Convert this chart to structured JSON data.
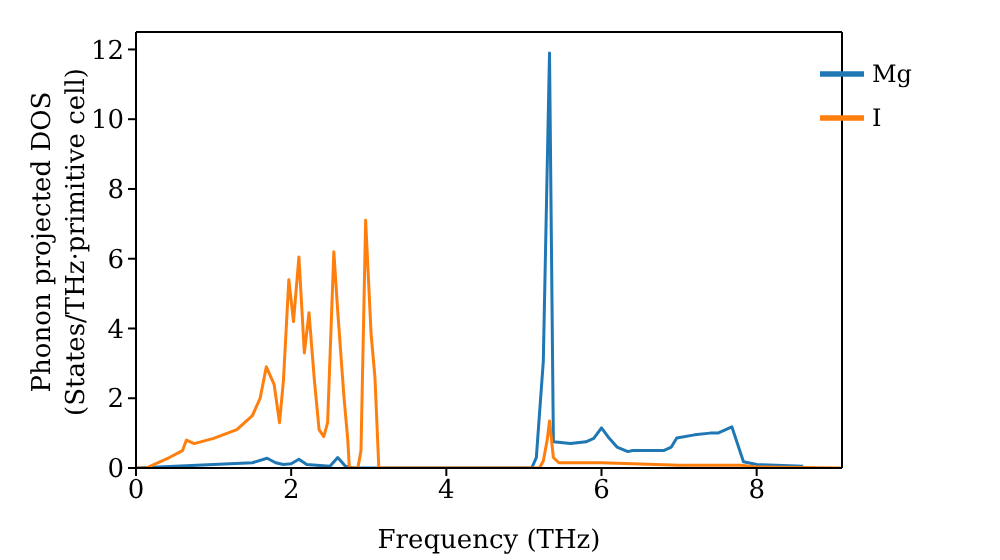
{
  "chart_data": {
    "type": "line",
    "xlabel": "Frequency (THz)",
    "ylabel": "Phonon projected DOS\n(States/THz·primitive cell)",
    "xlim": [
      0,
      9.1
    ],
    "ylim": [
      0,
      12.5
    ],
    "xticks": [
      0,
      2,
      4,
      6,
      8
    ],
    "yticks": [
      0,
      2,
      4,
      6,
      8,
      10,
      12
    ],
    "legend": "top right",
    "grid": false,
    "marker": "none",
    "line_style": "solid",
    "series": [
      {
        "name": "Mg",
        "color": "#1f77b4",
        "x": [
          0,
          0.5,
          1.0,
          1.5,
          1.69,
          1.8,
          1.9,
          2.0,
          2.1,
          2.2,
          2.5,
          2.6,
          2.7,
          2.8,
          5.1,
          5.16,
          5.25,
          5.33,
          5.38,
          5.6,
          5.8,
          5.9,
          6.0,
          6.1,
          6.2,
          6.34,
          6.4,
          6.6,
          6.8,
          6.9,
          6.97,
          7.2,
          7.4,
          7.5,
          7.68,
          7.83,
          8.0,
          8.6
        ],
        "values": [
          0,
          0.05,
          0.1,
          0.15,
          0.28,
          0.15,
          0.1,
          0.12,
          0.25,
          0.1,
          0.05,
          0.3,
          0.05,
          0,
          0,
          0.3,
          3.06,
          11.9,
          0.75,
          0.7,
          0.75,
          0.85,
          1.15,
          0.85,
          0.6,
          0.47,
          0.5,
          0.5,
          0.5,
          0.6,
          0.86,
          0.95,
          1.0,
          1.0,
          1.18,
          0.18,
          0.1,
          0.05
        ]
      },
      {
        "name": "I",
        "color": "#ff7f0e",
        "x": [
          0,
          0.13,
          0.43,
          0.6,
          0.65,
          0.75,
          1.0,
          1.3,
          1.5,
          1.6,
          1.68,
          1.78,
          1.85,
          1.9,
          1.97,
          2.03,
          2.1,
          2.17,
          2.23,
          2.3,
          2.36,
          2.42,
          2.47,
          2.55,
          2.6,
          2.68,
          2.73,
          2.75,
          2.86,
          2.9,
          2.96,
          3.03,
          3.08,
          3.13,
          5.2,
          5.25,
          5.3,
          5.33,
          5.38,
          5.45,
          6.0,
          7.0,
          7.8,
          8.0,
          9.1
        ],
        "values": [
          0,
          0,
          0.3,
          0.5,
          0.8,
          0.7,
          0.85,
          1.1,
          1.5,
          2.0,
          2.9,
          2.4,
          1.3,
          2.5,
          5.4,
          4.2,
          6.05,
          3.3,
          4.45,
          2.5,
          1.1,
          0.9,
          1.3,
          6.2,
          4.5,
          2.05,
          0.8,
          0,
          0,
          0.5,
          7.1,
          3.85,
          2.6,
          0,
          0,
          0.2,
          0.8,
          1.35,
          0.3,
          0.15,
          0.15,
          0.08,
          0.08,
          0.03,
          0
        ]
      }
    ]
  }
}
